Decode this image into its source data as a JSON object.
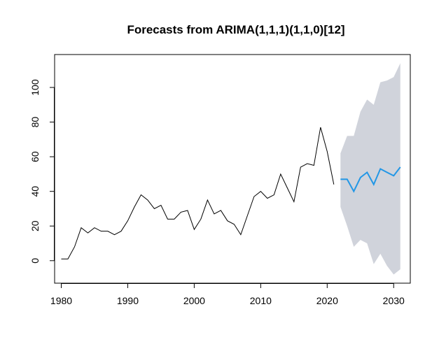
{
  "chart_data": {
    "type": "line",
    "title": "Forecasts from ARIMA(1,1,1)(1,1,0)[12]",
    "xlabel": "",
    "ylabel": "",
    "xlim": [
      1979,
      2032.5
    ],
    "ylim": [
      -13,
      119
    ],
    "xticks": [
      1980,
      1990,
      2000,
      2010,
      2020,
      2030
    ],
    "yticks": [
      0,
      20,
      40,
      60,
      80,
      100
    ],
    "grid": false,
    "legend": "none",
    "colors": {
      "history": "#000000",
      "forecast": "#2297E6",
      "interval": "#D0D3DB"
    },
    "series": [
      {
        "role": "history",
        "x": [
          1980,
          1981,
          1982,
          1983,
          1984,
          1985,
          1986,
          1987,
          1988,
          1989,
          1990,
          1991,
          1992,
          1993,
          1994,
          1995,
          1996,
          1997,
          1998,
          1999,
          2000,
          2001,
          2002,
          2003,
          2004,
          2005,
          2006,
          2007,
          2008,
          2009,
          2010,
          2011,
          2012,
          2013,
          2014,
          2015,
          2016,
          2017,
          2018,
          2019,
          2020,
          2021
        ],
        "values": [
          1,
          1,
          8,
          19,
          16,
          19,
          17,
          17,
          15,
          17,
          23,
          31,
          38,
          35,
          30,
          32,
          24,
          24,
          28,
          29,
          18,
          24,
          35,
          27,
          29,
          23,
          21,
          15,
          26,
          37,
          40,
          36,
          38,
          50,
          42,
          34,
          54,
          56,
          55,
          77,
          63,
          44
        ]
      },
      {
        "role": "forecast",
        "x": [
          2022,
          2023,
          2024,
          2025,
          2026,
          2027,
          2028,
          2029,
          2030,
          2031
        ],
        "values": [
          47,
          47,
          40,
          48,
          51,
          44,
          53,
          51,
          49,
          54
        ],
        "lower": [
          31,
          20,
          8,
          12,
          10,
          -2,
          4,
          -3,
          -8,
          -5
        ],
        "upper": [
          62,
          72,
          72,
          86,
          93,
          90,
          103,
          104,
          106,
          114
        ]
      }
    ]
  }
}
